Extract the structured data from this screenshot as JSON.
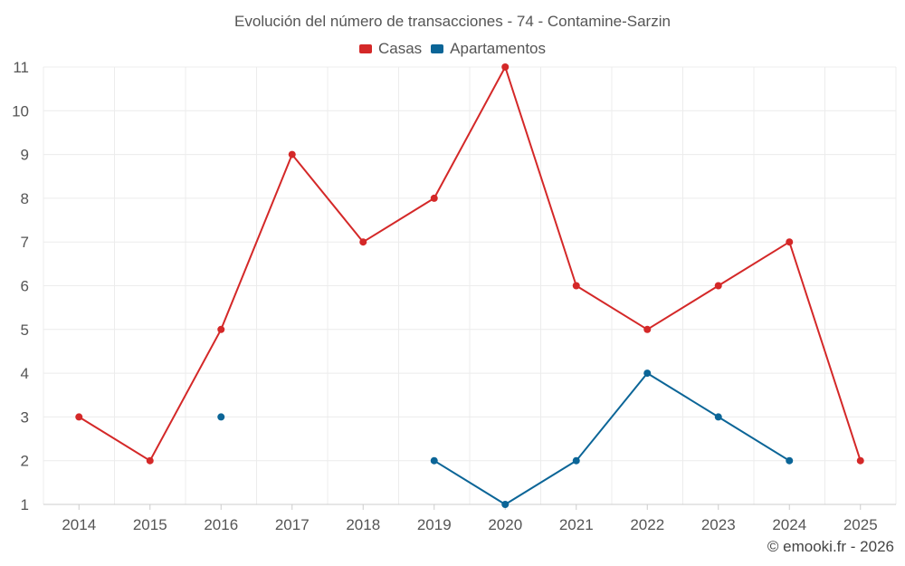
{
  "chart_data": {
    "type": "line",
    "title": "Evolución del número de transacciones - 74 - Contamine-Sarzin",
    "categories": [
      "2014",
      "2015",
      "2016",
      "2017",
      "2018",
      "2019",
      "2020",
      "2021",
      "2022",
      "2023",
      "2024",
      "2025"
    ],
    "ylim": [
      1,
      11
    ],
    "yticks": [
      "1",
      "2",
      "3",
      "4",
      "5",
      "6",
      "7",
      "8",
      "9",
      "10",
      "11"
    ],
    "grid": true,
    "legend_position": "top-center",
    "series": [
      {
        "name": "Casas",
        "color": "#d42828",
        "values": [
          3,
          2,
          5,
          9,
          7,
          8,
          11,
          6,
          5,
          6,
          7,
          2
        ]
      },
      {
        "name": "Apartamentos",
        "color": "#0b6597",
        "values": [
          null,
          null,
          3,
          null,
          null,
          2,
          1,
          2,
          4,
          3,
          2,
          null
        ]
      }
    ]
  },
  "credit": "© emooki.fr - 2026"
}
